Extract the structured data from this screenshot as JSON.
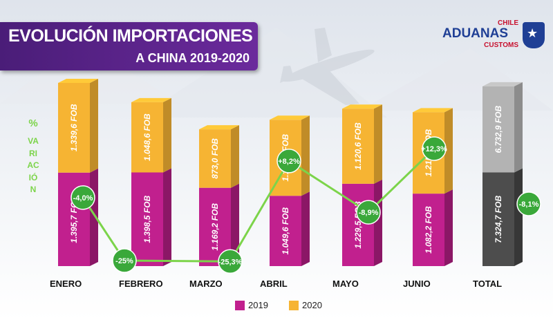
{
  "title": {
    "line1": "EVOLUCIÓN IMPORTACIONES",
    "line2": "A CHINA 2019-2020"
  },
  "logo": {
    "top": "CHILE",
    "main": "ADUANAS",
    "sub": "CUSTOMS",
    "icon": "star-shield-icon"
  },
  "variation_label": {
    "symbol": "%",
    "word": "VARIACIÓN"
  },
  "colors": {
    "y2019": "#c1208e",
    "y2020": "#f6b433",
    "total2019": "#4d4d4d",
    "total2020": "#b3b3b3",
    "line": "#7cd44a",
    "bubble": "#3aa83a"
  },
  "chart_data": {
    "type": "bar",
    "stacked": true,
    "categories": [
      "ENERO",
      "FEBRERO",
      "MARZO",
      "ABRIL",
      "MAYO",
      "JUNIO",
      "TOTAL"
    ],
    "series": [
      {
        "name": "2019",
        "values": [
          1395.7,
          1398.5,
          1169.2,
          1049.6,
          1229.5,
          1082.2,
          7324.7
        ],
        "labels": [
          "1.395,7 FOB",
          "1.398,5 FOB",
          "1.169,2 FOB",
          "1.049,6 FOB",
          "1.229,5 FOB",
          "1.082,2 FOB",
          "7.324,7 FOB"
        ]
      },
      {
        "name": "2020",
        "values": [
          1339.6,
          1048.6,
          873.0,
          1135.5,
          1120.6,
          1215.6,
          6732.9
        ],
        "labels": [
          "1.339,6 FOB",
          "1.048,6 FOB",
          "873,0 FOB",
          "1.135,5 FOB",
          "1.120,6 FOB",
          "1.215,6 FOB",
          "6.732,9 FOB"
        ]
      }
    ],
    "variation": {
      "values": [
        -4.0,
        -25.0,
        -25.3,
        8.2,
        -8.9,
        12.3,
        -8.1
      ],
      "labels": [
        "-4,0%",
        "-25%",
        "-25,3%",
        "+8,2%",
        "-8,9%",
        "+12,3%",
        "-8,1%"
      ]
    },
    "legend": [
      "2019",
      "2020"
    ],
    "legend_position": "bottom-center",
    "grid": false
  }
}
